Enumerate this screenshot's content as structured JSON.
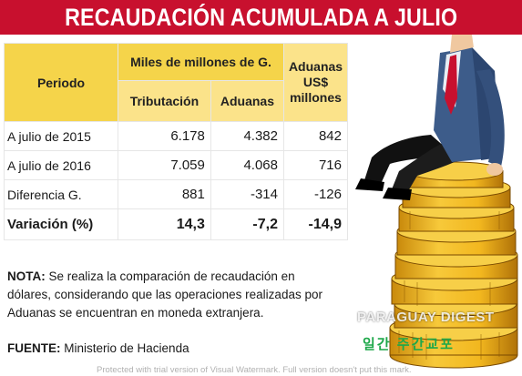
{
  "title": "RECAUDACIÓN ACUMULADA A JULIO",
  "table": {
    "header_periodo": "Periodo",
    "header_miles": "Miles de millones de G.",
    "header_usd": "Aduanas US$ millones",
    "sub_tributacion": "Tributación",
    "sub_aduanas": "Aduanas",
    "rows": [
      {
        "label": "A julio de 2015",
        "tributacion": "6.178",
        "aduanas": "4.382",
        "usd": "842"
      },
      {
        "label": "A julio de 2016",
        "tributacion": "7.059",
        "aduanas": "4.068",
        "usd": "716"
      },
      {
        "label": "Diferencia G.",
        "tributacion": "881",
        "aduanas": "-314",
        "usd": "-126"
      },
      {
        "label": "Variación (%)",
        "tributacion": "14,3",
        "aduanas": "-7,2",
        "usd": "-14,9"
      }
    ]
  },
  "note": {
    "label": "NOTA:",
    "text": "Se realiza la comparación de recaudación en dólares, considerando que las operaciones realizadas por Aduanas se encuentran en moneda extranjera."
  },
  "source": {
    "label": "FUENTE:",
    "text": "Ministerio de Hacienda"
  },
  "watermarks": {
    "site": "PARAGUAY DIGEST",
    "korean": "일간 주간교포",
    "trial": "Protected with trial version of Visual Watermark. Full version doesn't put this mark."
  },
  "colors": {
    "banner": "#c8102e",
    "header_yellow": "#f5d44a",
    "coin_gold": "#f2b71f"
  }
}
